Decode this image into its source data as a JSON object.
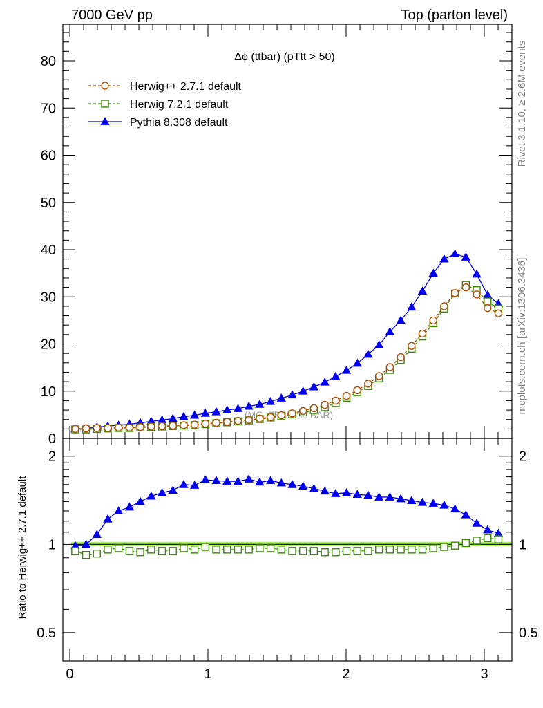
{
  "header": {
    "left": "7000 GeV pp",
    "right": "Top (parton level)"
  },
  "side_labels": {
    "rivet": "Rivet 3.1.10, ≥ 2.6M events",
    "mcplots": "mcplots.cern.ch [arXiv:1306.3436]"
  },
  "watermark": "(MC_FBBT_TTBAR)",
  "chart_data": [
    {
      "type": "line",
      "title": "Δϕ (ttbar) (pTtt > 50)",
      "xlabel": "",
      "ylabel": "",
      "xlim": [
        -0.05,
        3.2
      ],
      "ylim": [
        0,
        80
      ],
      "yticks": [
        0,
        10,
        20,
        30,
        40,
        50,
        60,
        70,
        80
      ],
      "ytick_labels": [
        "0",
        "10",
        "20",
        "30",
        "40",
        "50",
        "60",
        "70",
        "80"
      ],
      "legend_position": "top-left",
      "x": [
        0.0393,
        0.1178,
        0.1963,
        0.2749,
        0.3534,
        0.432,
        0.5105,
        0.589,
        0.6676,
        0.7461,
        0.8247,
        0.9032,
        0.9817,
        1.0603,
        1.1388,
        1.2174,
        1.2959,
        1.3744,
        1.453,
        1.5315,
        1.6101,
        1.6886,
        1.7671,
        1.8457,
        1.9242,
        2.0028,
        2.0813,
        2.1598,
        2.2384,
        2.3169,
        2.3955,
        2.474,
        2.5525,
        2.6311,
        2.7096,
        2.7882,
        2.8667,
        2.9452,
        3.0238,
        3.1023
      ],
      "series": [
        {
          "name": "Herwig++ 2.7.1 default",
          "color": "#b34b00",
          "marker": "open-circle",
          "line": "dashed",
          "values": [
            2.0,
            2.1,
            2.2,
            2.2,
            2.3,
            2.3,
            2.4,
            2.5,
            2.6,
            2.7,
            2.8,
            2.9,
            3.1,
            3.3,
            3.5,
            3.7,
            3.9,
            4.2,
            4.5,
            4.9,
            5.3,
            5.8,
            6.4,
            7.1,
            8.0,
            9.0,
            10.2,
            11.6,
            13.2,
            15.1,
            17.2,
            19.6,
            22.2,
            25.0,
            28.0,
            30.8,
            32.0,
            30.5,
            27.6,
            26.5
          ]
        },
        {
          "name": "Herwig 7.2.1 default",
          "color": "#3a8a00",
          "marker": "open-square",
          "line": "dashed",
          "values": [
            1.9,
            1.9,
            2.0,
            2.1,
            2.2,
            2.2,
            2.3,
            2.4,
            2.5,
            2.6,
            2.7,
            2.8,
            3.0,
            3.2,
            3.4,
            3.6,
            3.8,
            4.1,
            4.4,
            4.7,
            5.1,
            5.5,
            6.0,
            6.6,
            7.5,
            8.6,
            9.8,
            11.1,
            12.7,
            14.5,
            16.6,
            19.0,
            21.6,
            24.4,
            27.5,
            30.7,
            32.5,
            31.4,
            29.0,
            27.5
          ]
        },
        {
          "name": "Pythia 8.308 default",
          "color": "#0000ee",
          "marker": "filled-triangle",
          "line": "solid",
          "values": [
            2.0,
            2.1,
            2.4,
            2.6,
            2.8,
            3.0,
            3.3,
            3.6,
            3.9,
            4.2,
            4.6,
            4.9,
            5.3,
            5.6,
            6.0,
            6.3,
            6.8,
            7.2,
            7.8,
            8.5,
            9.2,
            10.0,
            10.9,
            11.9,
            13.1,
            14.4,
            15.9,
            17.8,
            19.8,
            22.6,
            25.0,
            27.8,
            31.2,
            35.0,
            38.0,
            39.1,
            38.4,
            34.8,
            30.4,
            28.5
          ]
        }
      ]
    },
    {
      "type": "line",
      "title": "",
      "xlabel": "",
      "ylabel": "Ratio to Herwig++ 2.7.1 default",
      "xlim": [
        -0.05,
        3.2
      ],
      "ylim": [
        0.4,
        2.3
      ],
      "yscale": "log",
      "yticks": [
        0.5,
        1,
        2
      ],
      "ytick_labels": [
        "0.5",
        "1",
        "2"
      ],
      "xticks": [
        0,
        1,
        2,
        3
      ],
      "xtick_labels": [
        "0",
        "1",
        "2",
        "3"
      ],
      "band": {
        "lower": 0.985,
        "upper": 1.02,
        "color": "#b0f060"
      },
      "series": [
        {
          "name": "Herwig 7.2.1 default",
          "color": "#3a8a00",
          "marker": "open-square",
          "line": "dashed",
          "values": [
            0.95,
            0.92,
            0.93,
            0.96,
            0.97,
            0.95,
            0.94,
            0.96,
            0.95,
            0.95,
            0.97,
            0.96,
            0.98,
            0.96,
            0.96,
            0.96,
            0.96,
            0.97,
            0.97,
            0.96,
            0.95,
            0.95,
            0.95,
            0.94,
            0.94,
            0.95,
            0.95,
            0.95,
            0.96,
            0.96,
            0.96,
            0.96,
            0.96,
            0.97,
            0.98,
            0.99,
            1.01,
            1.03,
            1.05,
            1.04
          ]
        },
        {
          "name": "Pythia 8.308 default",
          "color": "#0000ee",
          "marker": "filled-triangle",
          "line": "solid",
          "values": [
            0.99,
            1.0,
            1.08,
            1.22,
            1.3,
            1.34,
            1.4,
            1.46,
            1.5,
            1.53,
            1.6,
            1.59,
            1.66,
            1.65,
            1.64,
            1.64,
            1.67,
            1.63,
            1.65,
            1.62,
            1.6,
            1.58,
            1.55,
            1.52,
            1.49,
            1.5,
            1.48,
            1.47,
            1.45,
            1.45,
            1.43,
            1.41,
            1.39,
            1.38,
            1.36,
            1.32,
            1.26,
            1.18,
            1.12,
            1.09
          ]
        }
      ]
    }
  ]
}
